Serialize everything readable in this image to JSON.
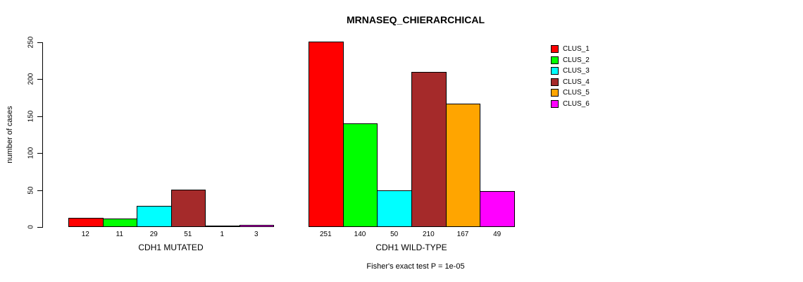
{
  "chart_data": {
    "type": "bar",
    "title": "MRNASEQ_CHIERARCHICAL",
    "ylabel": "number of cases",
    "annotation": "Fisher's exact test P = 1e-05",
    "yticks": [
      0,
      50,
      100,
      150,
      200,
      250
    ],
    "ylim": [
      0,
      250
    ],
    "grid": false,
    "legend_position": "right",
    "series": [
      {
        "name": "CLUS_1",
        "color": "#FF0000"
      },
      {
        "name": "CLUS_2",
        "color": "#00FF00"
      },
      {
        "name": "CLUS_3",
        "color": "#00FFFF"
      },
      {
        "name": "CLUS_4",
        "color": "#A52A2A"
      },
      {
        "name": "CLUS_5",
        "color": "#FFA500"
      },
      {
        "name": "CLUS_6",
        "color": "#FF00FF"
      }
    ],
    "groups": [
      {
        "label": "CDH1 MUTATED",
        "values": [
          12,
          11,
          29,
          51,
          1,
          3
        ]
      },
      {
        "label": "CDH1 WILD-TYPE",
        "values": [
          251,
          140,
          50,
          210,
          167,
          49
        ]
      }
    ]
  }
}
